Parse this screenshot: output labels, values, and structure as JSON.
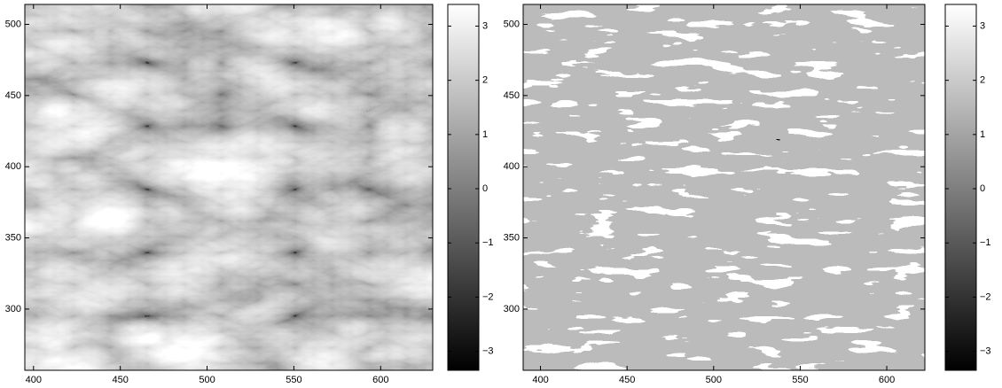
{
  "chart_data": [
    {
      "type": "heatmap",
      "colormap": "gray",
      "xlim": [
        395,
        630
      ],
      "xticks": [
        400,
        450,
        500,
        550,
        600
      ],
      "ylim": [
        257,
        514
      ],
      "yticks": [
        300,
        350,
        400,
        450,
        500
      ],
      "clim": [
        -3.35,
        3.4
      ],
      "cticks": [
        {
          "value": -3,
          "label": "−3"
        },
        {
          "value": -2,
          "label": "−2"
        },
        {
          "value": -1,
          "label": "−1"
        },
        0,
        1,
        2,
        3
      ]
    },
    {
      "type": "heatmap",
      "colormap": "gray",
      "xlim": [
        390,
        622
      ],
      "xticks": [
        400,
        450,
        500,
        550,
        600
      ],
      "ylim": [
        257,
        514
      ],
      "yticks": [
        300,
        350,
        400,
        450,
        500
      ],
      "clim": [
        -3.35,
        3.4
      ],
      "cticks": [
        {
          "value": -3,
          "label": "−3"
        },
        {
          "value": -2,
          "label": "−2"
        },
        {
          "value": -1,
          "label": "−1"
        },
        0,
        1,
        2,
        3
      ]
    }
  ]
}
